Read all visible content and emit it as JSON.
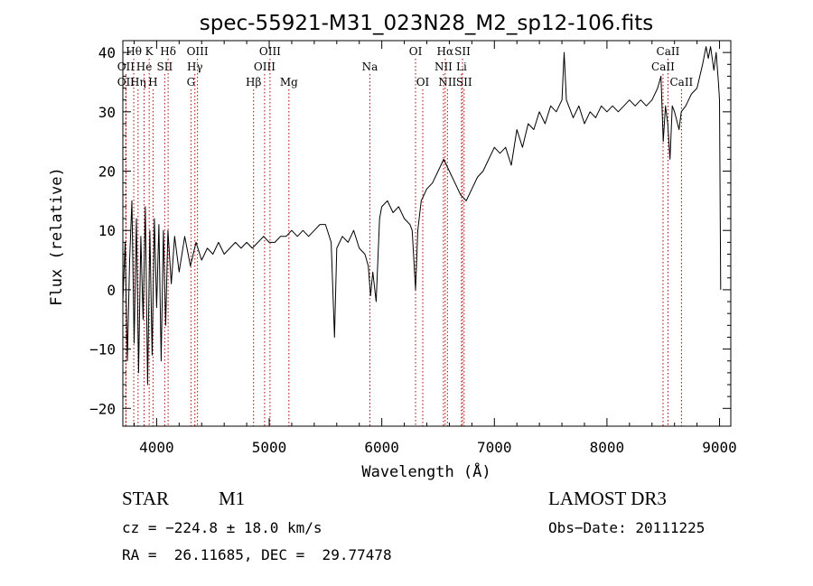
{
  "chart_data": {
    "type": "line",
    "title": "spec-55921-M31_023N28_M2_sp12-106.fits",
    "xlabel": "Wavelength (Å)",
    "ylabel": "Flux (relative)",
    "xlim": [
      3700,
      9100
    ],
    "ylim": [
      -23,
      42
    ],
    "x_ticks": [
      4000,
      5000,
      6000,
      7000,
      8000,
      9000
    ],
    "y_ticks": [
      -20,
      -10,
      0,
      10,
      20,
      30,
      40
    ],
    "grid": false,
    "series": [
      {
        "name": "flux",
        "points": [
          [
            3700,
            -2
          ],
          [
            3720,
            8
          ],
          [
            3740,
            -12
          ],
          [
            3760,
            5
          ],
          [
            3780,
            15
          ],
          [
            3800,
            -9
          ],
          [
            3820,
            12
          ],
          [
            3840,
            -14
          ],
          [
            3860,
            9
          ],
          [
            3880,
            -5
          ],
          [
            3900,
            14
          ],
          [
            3920,
            -16
          ],
          [
            3940,
            10
          ],
          [
            3960,
            -11
          ],
          [
            3980,
            12
          ],
          [
            4000,
            -3
          ],
          [
            4020,
            11
          ],
          [
            4040,
            -12
          ],
          [
            4060,
            10
          ],
          [
            4080,
            -6
          ],
          [
            4100,
            10
          ],
          [
            4130,
            1
          ],
          [
            4160,
            9
          ],
          [
            4200,
            3
          ],
          [
            4250,
            9
          ],
          [
            4300,
            4
          ],
          [
            4350,
            8
          ],
          [
            4400,
            5
          ],
          [
            4450,
            7
          ],
          [
            4500,
            6
          ],
          [
            4550,
            8
          ],
          [
            4600,
            6
          ],
          [
            4650,
            7
          ],
          [
            4700,
            8
          ],
          [
            4750,
            7
          ],
          [
            4800,
            8
          ],
          [
            4850,
            7
          ],
          [
            4900,
            8
          ],
          [
            4950,
            9
          ],
          [
            5000,
            8
          ],
          [
            5050,
            8
          ],
          [
            5100,
            9
          ],
          [
            5150,
            9
          ],
          [
            5200,
            10
          ],
          [
            5250,
            9
          ],
          [
            5300,
            10
          ],
          [
            5350,
            9
          ],
          [
            5400,
            10
          ],
          [
            5450,
            11
          ],
          [
            5500,
            11
          ],
          [
            5550,
            8
          ],
          [
            5580,
            -8
          ],
          [
            5600,
            7
          ],
          [
            5650,
            9
          ],
          [
            5700,
            8
          ],
          [
            5750,
            10
          ],
          [
            5800,
            7
          ],
          [
            5850,
            6
          ],
          [
            5880,
            4
          ],
          [
            5900,
            -1
          ],
          [
            5920,
            3
          ],
          [
            5950,
            -2
          ],
          [
            5980,
            12
          ],
          [
            6000,
            14
          ],
          [
            6050,
            15
          ],
          [
            6100,
            13
          ],
          [
            6150,
            14
          ],
          [
            6200,
            12
          ],
          [
            6250,
            11
          ],
          [
            6270,
            10
          ],
          [
            6300,
            0
          ],
          [
            6320,
            10
          ],
          [
            6350,
            15
          ],
          [
            6400,
            17
          ],
          [
            6450,
            18
          ],
          [
            6500,
            20
          ],
          [
            6550,
            22
          ],
          [
            6600,
            20
          ],
          [
            6650,
            18
          ],
          [
            6700,
            16
          ],
          [
            6750,
            15
          ],
          [
            6800,
            17
          ],
          [
            6850,
            19
          ],
          [
            6900,
            20
          ],
          [
            6950,
            22
          ],
          [
            7000,
            24
          ],
          [
            7050,
            23
          ],
          [
            7100,
            24
          ],
          [
            7150,
            21
          ],
          [
            7200,
            27
          ],
          [
            7250,
            24
          ],
          [
            7300,
            28
          ],
          [
            7350,
            27
          ],
          [
            7400,
            30
          ],
          [
            7450,
            28
          ],
          [
            7500,
            31
          ],
          [
            7550,
            30
          ],
          [
            7600,
            32
          ],
          [
            7620,
            40
          ],
          [
            7640,
            32
          ],
          [
            7700,
            29
          ],
          [
            7750,
            31
          ],
          [
            7800,
            28
          ],
          [
            7850,
            30
          ],
          [
            7900,
            29
          ],
          [
            7950,
            31
          ],
          [
            8000,
            30
          ],
          [
            8050,
            31
          ],
          [
            8100,
            30
          ],
          [
            8150,
            31
          ],
          [
            8200,
            32
          ],
          [
            8250,
            31
          ],
          [
            8300,
            32
          ],
          [
            8350,
            31
          ],
          [
            8400,
            32
          ],
          [
            8450,
            34
          ],
          [
            8480,
            36
          ],
          [
            8500,
            25
          ],
          [
            8520,
            31
          ],
          [
            8540,
            28
          ],
          [
            8560,
            22
          ],
          [
            8580,
            31
          ],
          [
            8600,
            30
          ],
          [
            8640,
            27
          ],
          [
            8660,
            30
          ],
          [
            8700,
            31
          ],
          [
            8750,
            33
          ],
          [
            8800,
            34
          ],
          [
            8850,
            38
          ],
          [
            8880,
            41
          ],
          [
            8900,
            39
          ],
          [
            8920,
            41
          ],
          [
            8950,
            37
          ],
          [
            8970,
            40
          ],
          [
            8990,
            35
          ],
          [
            9000,
            32
          ],
          [
            9010,
            0
          ]
        ]
      }
    ],
    "line_markers": [
      {
        "label": "Hθ",
        "wavelength": 3797,
        "row": 1
      },
      {
        "label": "OII",
        "wavelength": 3727,
        "row": 2
      },
      {
        "label": "OII",
        "wavelength": 3727,
        "row": 3
      },
      {
        "label": "Hη",
        "wavelength": 3835,
        "row": 3
      },
      {
        "label": "He",
        "wavelength": 3889,
        "row": 2
      },
      {
        "label": "K",
        "wavelength": 3934,
        "row": 1
      },
      {
        "label": "H",
        "wavelength": 3968,
        "row": 3
      },
      {
        "label": "SII",
        "wavelength": 4072,
        "row": 2
      },
      {
        "label": "Hδ",
        "wavelength": 4102,
        "row": 1
      },
      {
        "label": "G",
        "wavelength": 4305,
        "row": 3
      },
      {
        "label": "OIII",
        "wavelength": 4363,
        "row": 1
      },
      {
        "label": "Hγ",
        "wavelength": 4340,
        "row": 2
      },
      {
        "label": "Hβ",
        "wavelength": 4861,
        "row": 3
      },
      {
        "label": "OIII",
        "wavelength": 4959,
        "row": 2
      },
      {
        "label": "OIII",
        "wavelength": 5007,
        "row": 1
      },
      {
        "label": "Mg",
        "wavelength": 5175,
        "row": 3
      },
      {
        "label": "Na",
        "wavelength": 5894,
        "row": 2
      },
      {
        "label": "OI",
        "wavelength": 6300,
        "row": 1
      },
      {
        "label": "OI",
        "wavelength": 6364,
        "row": 3
      },
      {
        "label": "NII",
        "wavelength": 6548,
        "row": 2
      },
      {
        "label": "Hα",
        "wavelength": 6563,
        "row": 1
      },
      {
        "label": "NII",
        "wavelength": 6583,
        "row": 3
      },
      {
        "label": "SII",
        "wavelength": 6717,
        "row": 1
      },
      {
        "label": "Li",
        "wavelength": 6708,
        "row": 2
      },
      {
        "label": "SII",
        "wavelength": 6731,
        "row": 3
      },
      {
        "label": "CaII",
        "wavelength": 8542,
        "row": 1
      },
      {
        "label": "CaII",
        "wavelength": 8498,
        "row": 2
      },
      {
        "label": "CaII",
        "wavelength": 8662,
        "row": 3
      }
    ],
    "marker_color": "#b00000"
  },
  "footer": {
    "object_class": "STAR",
    "subclass": "M1",
    "survey": "LAMOST DR3",
    "cz": "cz = −224.8 ± 18.0 km/s",
    "obs_date": "Obs−Date: 20111225",
    "coords": "RA =  26.11685, DEC =  29.77478"
  }
}
